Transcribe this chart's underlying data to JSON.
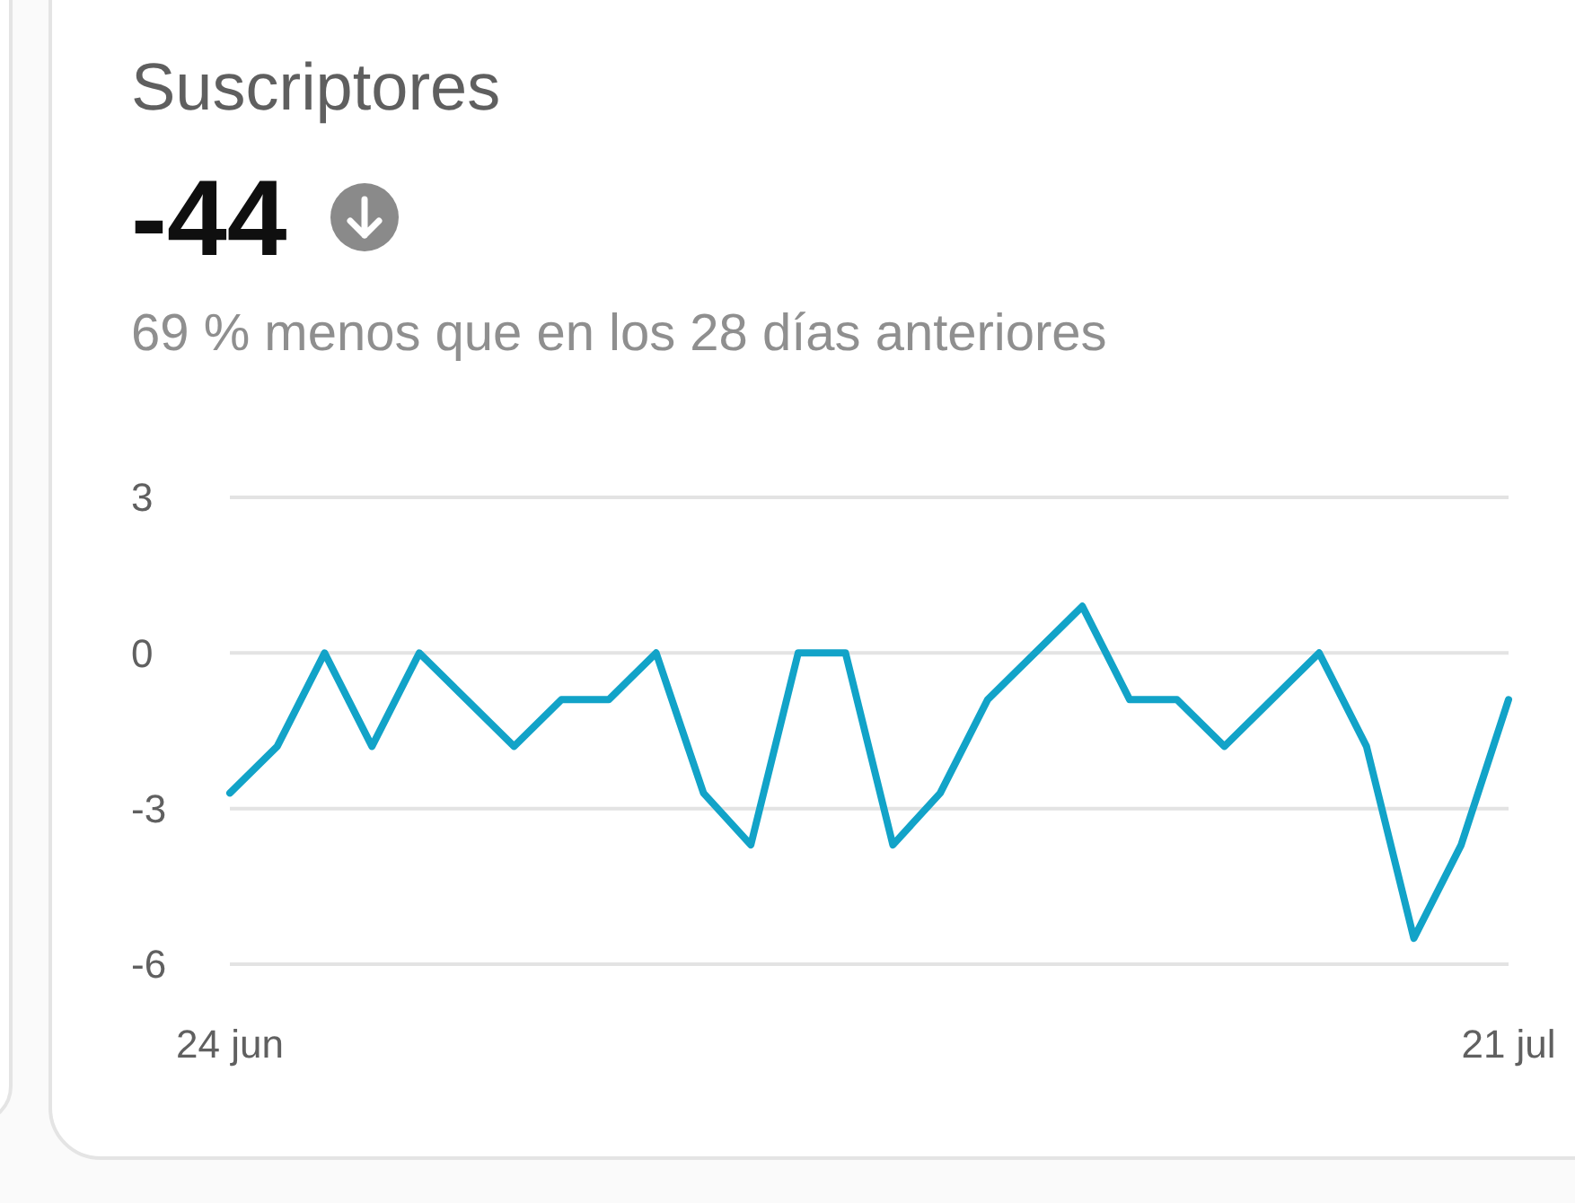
{
  "chart_data": {
    "type": "line",
    "title": "Suscriptores",
    "subtitle": "-44",
    "annotations": [
      "69 % menos que en los 28 días anteriores"
    ],
    "categories": [
      "24 jun",
      null,
      null,
      null,
      null,
      null,
      null,
      null,
      null,
      null,
      null,
      null,
      null,
      null,
      null,
      null,
      null,
      null,
      null,
      null,
      null,
      null,
      null,
      null,
      null,
      null,
      null,
      "21 jul"
    ],
    "values": [
      -2.7,
      -1.8,
      0,
      -1.8,
      0,
      -0.9,
      -1.8,
      -0.9,
      -0.9,
      0,
      -2.7,
      -3.7,
      0,
      0,
      -3.7,
      -2.7,
      -0.9,
      0,
      0.9,
      -0.9,
      -0.9,
      -1.8,
      -0.9,
      0,
      -1.8,
      -5.5,
      -3.7,
      -0.9
    ],
    "color": "#12a3c8",
    "ylim": [
      -6,
      3
    ],
    "yticks": [
      -6,
      -3,
      0,
      3
    ],
    "grid": "y"
  }
}
